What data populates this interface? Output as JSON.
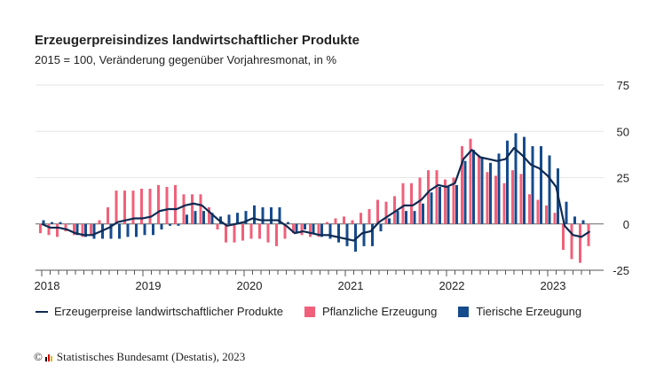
{
  "title": "Erzeugerpreisindizes landwirtschaftlicher Produkte",
  "subtitle": "2015 = 100, Veränderung gegenüber Vorjahresmonat, in %",
  "footer": "Statistisches Bundesamt (Destatis), 2023",
  "footer_icon": "copyright-icon",
  "colors": {
    "line": "#0d2a52",
    "pflanzlich": "#f0607a",
    "tierisch": "#164b8c",
    "grid": "#e6e6e6"
  },
  "chart_data": {
    "type": "bar+line",
    "x_start": "2018-01",
    "frequency": "monthly",
    "ylim": [
      -25,
      75
    ],
    "yticks": [
      75,
      50,
      25,
      0,
      -25
    ],
    "xticks": [
      "2018",
      "2019",
      "2020",
      "2021",
      "2022",
      "2023"
    ],
    "grid": true,
    "legend_position": "bottom",
    "series": [
      {
        "name": "Erzeugerpreise landwirtschaftlicher Produkte",
        "type": "line",
        "values": [
          0,
          -2,
          -2,
          -3,
          -5,
          -6,
          -6,
          -4,
          -2,
          1,
          2,
          3,
          3,
          4,
          7,
          8,
          8,
          10,
          11,
          10,
          6,
          2,
          -1,
          0,
          1,
          3,
          2,
          2,
          2,
          -1,
          -5,
          -4,
          -5,
          -6,
          -6,
          -7,
          -8,
          -9,
          -5,
          -4,
          1,
          4,
          7,
          10,
          10,
          13,
          18,
          21,
          20,
          22,
          35,
          40,
          36,
          35,
          34,
          35,
          41,
          37,
          32,
          30,
          26,
          20,
          -1,
          -6,
          -7,
          -4
        ]
      },
      {
        "name": "Pflanzliche Erzeugung",
        "type": "bar",
        "values": [
          -5,
          -6,
          -7,
          -4,
          -6,
          -7,
          -6,
          2,
          9,
          18,
          18,
          18,
          19,
          19,
          21,
          20,
          21,
          16,
          16,
          16,
          9,
          -3,
          -10,
          -10,
          -9,
          -8,
          -8,
          -10,
          -12,
          -8,
          -5,
          -6,
          -7,
          -7,
          1,
          3,
          4,
          2,
          6,
          8,
          13,
          12,
          15,
          22,
          22,
          25,
          29,
          29,
          24,
          25,
          42,
          46,
          37,
          28,
          26,
          22,
          29,
          27,
          16,
          13,
          10,
          6,
          -14,
          -19,
          -21,
          -12
        ]
      },
      {
        "name": "Tierische Erzeugung",
        "type": "bar",
        "values": [
          2,
          1,
          1,
          0,
          -6,
          -7,
          -8,
          -8,
          -8,
          -8,
          -7,
          -7,
          -6,
          -6,
          -3,
          -1,
          -1,
          5,
          7,
          7,
          6,
          4,
          5,
          6,
          7,
          10,
          9,
          9,
          9,
          1,
          -5,
          -3,
          -5,
          -7,
          -8,
          -10,
          -12,
          -15,
          -12,
          -12,
          -4,
          3,
          7,
          7,
          7,
          11,
          17,
          20,
          20,
          21,
          34,
          40,
          36,
          33,
          38,
          45,
          49,
          47,
          42,
          42,
          37,
          30,
          12,
          4,
          2,
          null
        ]
      }
    ]
  }
}
